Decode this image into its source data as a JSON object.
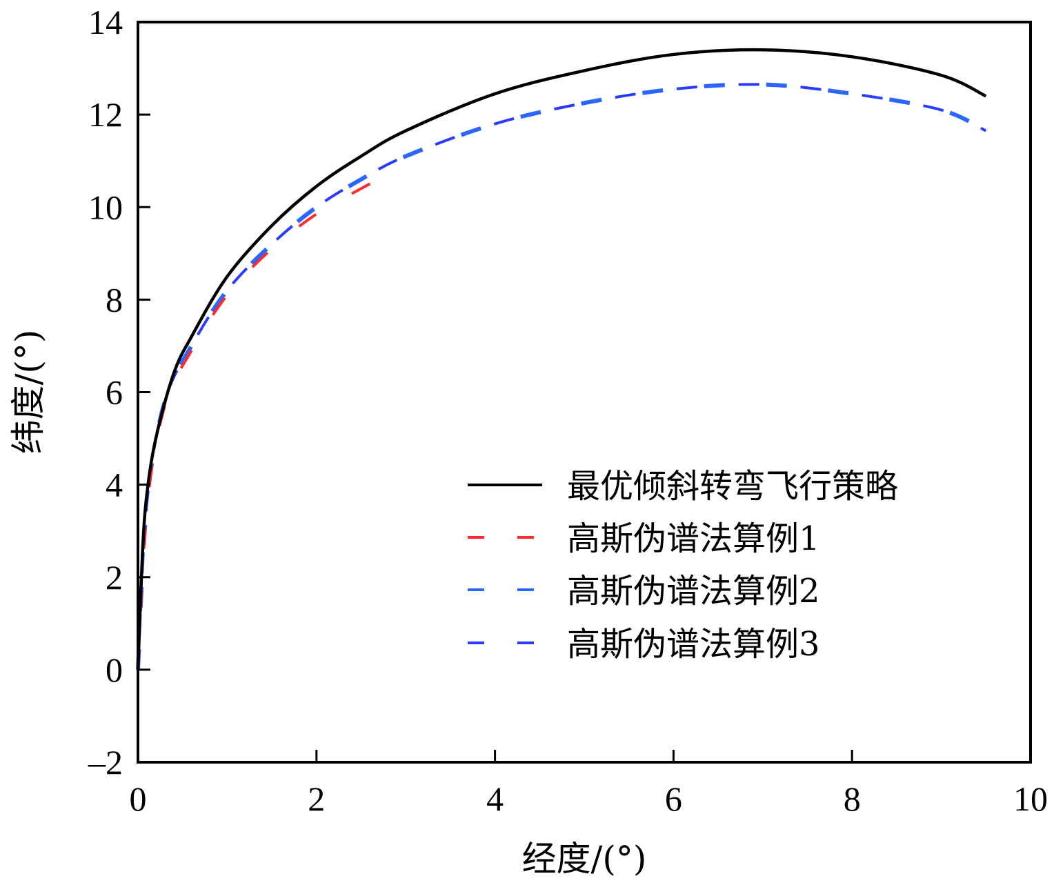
{
  "chart_data": {
    "type": "line",
    "title": "",
    "xlabel": "经度/(°)",
    "ylabel": "纬度/(°)",
    "xlim": [
      0,
      10
    ],
    "ylim": [
      -2,
      14
    ],
    "xticks": [
      0,
      2,
      4,
      6,
      8,
      10
    ],
    "yticks": [
      -2,
      0,
      2,
      4,
      6,
      8,
      10,
      12,
      14
    ],
    "ytick_labels": [
      "–2",
      "0",
      "2",
      "4",
      "6",
      "8",
      "10",
      "12",
      "14"
    ],
    "grid": false,
    "legend_position": "center-right",
    "series": [
      {
        "name": "最优倾斜转弯飞行策略",
        "color": "#000000",
        "style": "solid",
        "x": [
          0,
          0.05,
          0.1,
          0.2,
          0.4,
          0.6,
          1.0,
          1.5,
          2.0,
          2.5,
          3.0,
          4.0,
          5.0,
          6.0,
          7.0,
          8.0,
          9.0,
          9.5
        ],
        "y": [
          0,
          2.5,
          3.8,
          5.0,
          6.4,
          7.2,
          8.5,
          9.6,
          10.45,
          11.1,
          11.65,
          12.45,
          12.95,
          13.3,
          13.4,
          13.25,
          12.85,
          12.4
        ]
      },
      {
        "name": "高斯伪谱法算例1",
        "color": "#ff2a2a",
        "style": "dashed",
        "x": [
          0,
          0.1,
          0.3,
          0.6,
          1.0,
          1.5,
          2.0,
          2.5,
          2.7
        ],
        "y": [
          0,
          3.5,
          5.7,
          6.9,
          8.1,
          9.1,
          9.85,
          10.4,
          10.6
        ]
      },
      {
        "name": "高斯伪谱法算例2",
        "color": "#2a66ff",
        "style": "dashed",
        "x": [
          0,
          0.1,
          0.3,
          0.6,
          1.0,
          1.5,
          2.0,
          2.5,
          3.0,
          4.0,
          5.0,
          6.0,
          7.0,
          8.0,
          9.0,
          9.5
        ],
        "y": [
          0,
          3.6,
          5.8,
          7.0,
          8.2,
          9.2,
          10.0,
          10.6,
          11.1,
          11.8,
          12.25,
          12.55,
          12.65,
          12.45,
          12.1,
          11.65
        ]
      },
      {
        "name": "高斯伪谱法算例3",
        "color": "#2a3cff",
        "style": "dashed",
        "x": [
          0,
          0.1,
          0.3,
          0.6,
          1.0,
          1.5,
          2.0,
          2.5,
          3.0,
          4.0,
          5.0,
          6.0,
          7.0,
          8.0,
          9.0,
          9.5
        ],
        "y": [
          0,
          3.6,
          5.8,
          7.0,
          8.2,
          9.2,
          10.0,
          10.6,
          11.1,
          11.8,
          12.25,
          12.55,
          12.65,
          12.45,
          12.1,
          11.65
        ]
      }
    ]
  }
}
